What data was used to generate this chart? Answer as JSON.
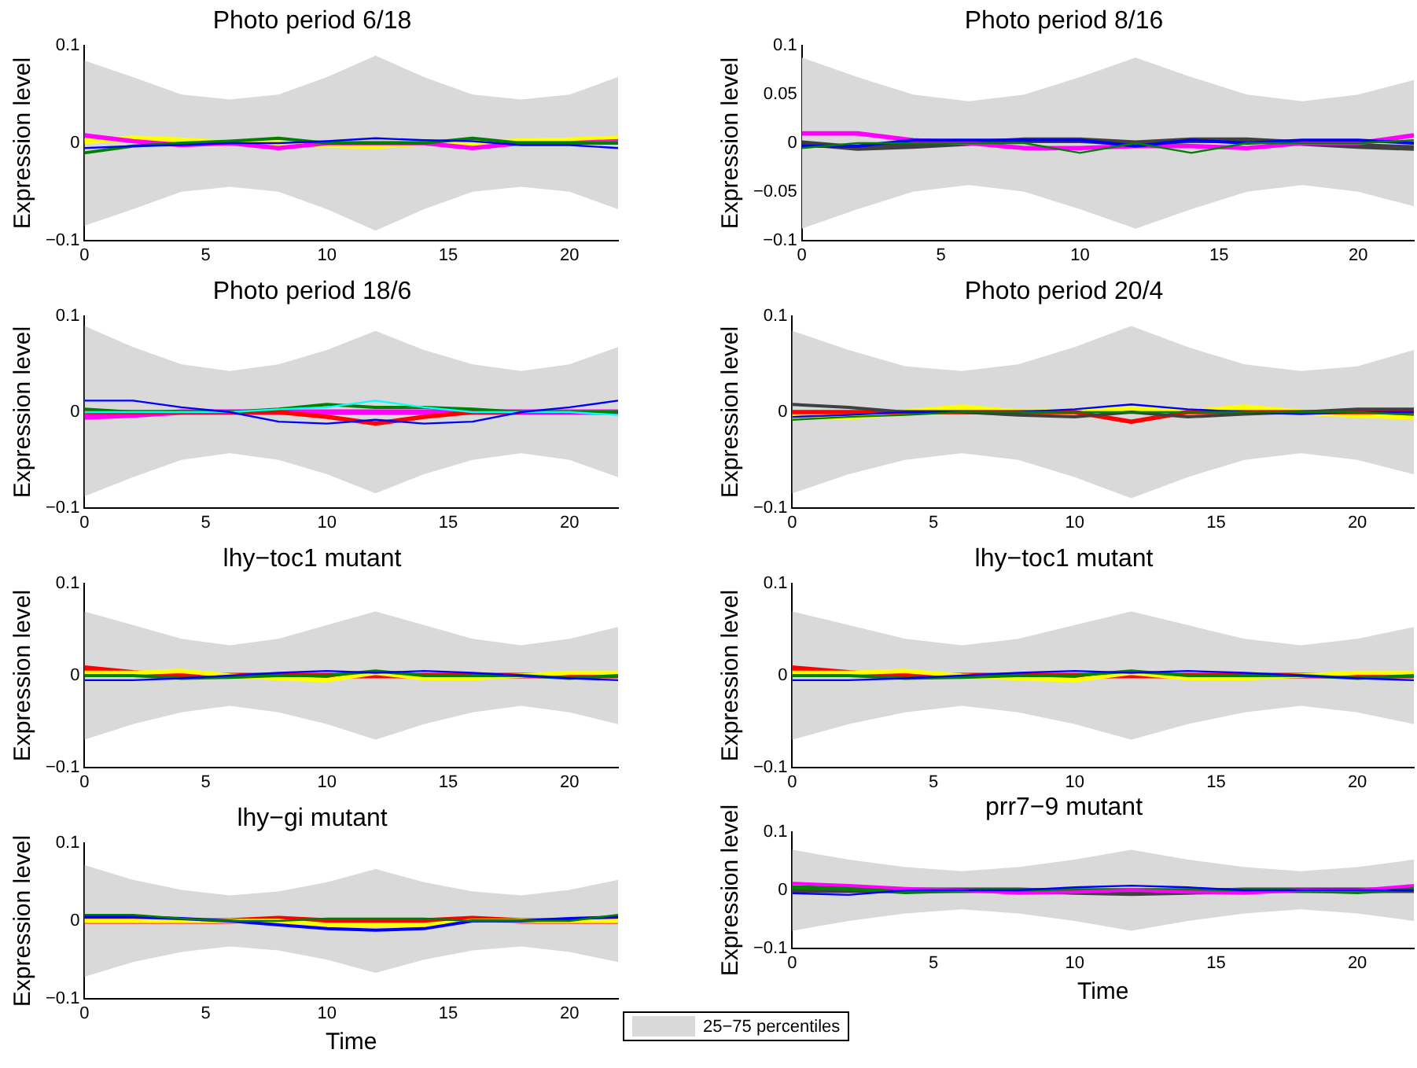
{
  "chart_data": [
    {
      "type": "line",
      "title": "Photo period 6/18",
      "ylabel": "Expression level",
      "x": [
        0,
        2,
        4,
        6,
        8,
        10,
        12,
        14,
        16,
        18,
        20,
        22
      ],
      "xlim": [
        0,
        22
      ],
      "xticks": [
        0,
        5,
        10,
        15,
        20
      ],
      "ylim": [
        -0.1,
        0.1
      ],
      "yticks": [
        -0.1,
        0,
        0.1
      ],
      "grid": false,
      "series": [
        {
          "type": "area",
          "color": "#d9d9d9",
          "values": [
            null,
            null,
            null,
            null,
            null,
            null,
            null,
            null,
            null,
            null,
            null,
            null
          ],
          "lower": [
            -0.085,
            -0.068,
            -0.05,
            -0.045,
            -0.05,
            -0.068,
            -0.09,
            -0.068,
            -0.05,
            -0.045,
            -0.05,
            -0.068
          ],
          "upper": [
            0.085,
            0.068,
            0.05,
            0.045,
            0.05,
            0.068,
            0.09,
            0.068,
            0.05,
            0.045,
            0.05,
            0.068
          ]
        },
        {
          "color": "#ffff00",
          "values": [
            0.002,
            0.005,
            0.003,
            0,
            0,
            -0.002,
            -0.003,
            0,
            0,
            0.002,
            0.003,
            0.005
          ]
        },
        {
          "color": "#ff00ff",
          "values": [
            0.008,
            0.002,
            -0.002,
            0,
            -0.005,
            0,
            0,
            0,
            -0.005,
            0,
            0,
            0.002
          ]
        },
        {
          "color": "#008000",
          "values": [
            -0.01,
            -0.003,
            0,
            0.002,
            0.005,
            0,
            0,
            0,
            0.005,
            0,
            0,
            0
          ]
        },
        {
          "color": "#0000ff",
          "values": [
            -0.005,
            -0.003,
            -0.002,
            0,
            0,
            0.002,
            0.005,
            0.003,
            0.002,
            -0.002,
            -0.002,
            -0.005
          ]
        }
      ]
    },
    {
      "type": "line",
      "title": "Photo period 8/16",
      "ylabel": "Expression level",
      "x": [
        0,
        2,
        4,
        6,
        8,
        10,
        12,
        14,
        16,
        18,
        20,
        22
      ],
      "xlim": [
        0,
        22
      ],
      "xticks": [
        0,
        5,
        10,
        15,
        20
      ],
      "ylim": [
        -0.1,
        0.1
      ],
      "yticks": [
        -0.1,
        -0.05,
        0,
        0.05,
        0.1
      ],
      "grid": false,
      "series": [
        {
          "type": "area",
          "color": "#d9d9d9",
          "values": [
            null,
            null,
            null,
            null,
            null,
            null,
            null,
            null,
            null,
            null,
            null,
            null
          ],
          "lower": [
            -0.088,
            -0.068,
            -0.05,
            -0.043,
            -0.05,
            -0.068,
            -0.088,
            -0.068,
            -0.05,
            -0.043,
            -0.05,
            -0.065
          ],
          "upper": [
            0.088,
            0.068,
            0.05,
            0.043,
            0.05,
            0.068,
            0.088,
            0.068,
            0.05,
            0.043,
            0.05,
            0.065
          ]
        },
        {
          "color": "#404040",
          "values": [
            0,
            -0.005,
            -0.003,
            0,
            0.003,
            0.003,
            0,
            0.003,
            0.003,
            0,
            -0.003,
            -0.005
          ]
        },
        {
          "color": "#ff00ff",
          "values": [
            0.01,
            0.01,
            0.003,
            0,
            -0.005,
            -0.005,
            -0.003,
            -0.003,
            -0.005,
            0,
            0,
            0.008
          ]
        },
        {
          "color": "#0000ff",
          "values": [
            -0.003,
            -0.003,
            0.003,
            0.003,
            0.003,
            0.003,
            -0.003,
            0.003,
            0,
            0.003,
            0.003,
            0
          ]
        },
        {
          "color": "#008000",
          "values": [
            -0.005,
            0,
            0,
            0,
            0,
            -0.01,
            0,
            -0.01,
            0,
            0,
            0,
            0.003
          ]
        }
      ]
    },
    {
      "type": "line",
      "title": "Photo period 18/6",
      "ylabel": "Expression level",
      "x": [
        0,
        2,
        4,
        6,
        8,
        10,
        12,
        14,
        16,
        18,
        20,
        22
      ],
      "xlim": [
        0,
        22
      ],
      "xticks": [
        0,
        5,
        10,
        15,
        20
      ],
      "ylim": [
        -0.1,
        0.1
      ],
      "yticks": [
        -0.1,
        0,
        0.1
      ],
      "grid": false,
      "series": [
        {
          "type": "area",
          "color": "#d9d9d9",
          "values": [
            null,
            null,
            null,
            null,
            null,
            null,
            null,
            null,
            null,
            null,
            null,
            null
          ],
          "lower": [
            -0.088,
            -0.068,
            -0.05,
            -0.043,
            -0.05,
            -0.065,
            -0.085,
            -0.065,
            -0.05,
            -0.043,
            -0.05,
            -0.068
          ],
          "upper": [
            0.09,
            0.068,
            0.05,
            0.043,
            0.05,
            0.065,
            0.085,
            0.065,
            0.05,
            0.043,
            0.05,
            0.068
          ]
        },
        {
          "color": "#ff00ff",
          "values": [
            -0.005,
            -0.003,
            0,
            0,
            0,
            0,
            0,
            0,
            0,
            0,
            0,
            0
          ]
        },
        {
          "color": "#ff0000",
          "values": [
            0,
            0,
            0,
            0,
            0,
            -0.005,
            -0.012,
            -0.005,
            0,
            0,
            null,
            null
          ]
        },
        {
          "color": "#008000",
          "values": [
            0.003,
            0,
            0,
            0,
            0.003,
            0.008,
            0.005,
            0.005,
            0.003,
            0,
            0,
            0
          ]
        },
        {
          "color": "#00ffff",
          "values": [
            0,
            0,
            0,
            0,
            0.003,
            0.005,
            0.012,
            0.005,
            0,
            0,
            0,
            -0.003
          ]
        },
        {
          "color": "#0000ff",
          "values": [
            0.012,
            0.012,
            0.005,
            0,
            -0.01,
            -0.012,
            -0.008,
            -0.012,
            -0.01,
            0,
            0.005,
            0.012
          ]
        }
      ]
    },
    {
      "type": "line",
      "title": "Photo period 20/4",
      "ylabel": "Expression level",
      "x": [
        0,
        2,
        4,
        6,
        8,
        10,
        12,
        14,
        16,
        18,
        20,
        22
      ],
      "xlim": [
        0,
        22
      ],
      "xticks": [
        0,
        5,
        10,
        15,
        20
      ],
      "ylim": [
        -0.1,
        0.1
      ],
      "yticks": [
        -0.1,
        0,
        0.1
      ],
      "grid": false,
      "series": [
        {
          "type": "area",
          "color": "#d9d9d9",
          "values": [
            null,
            null,
            null,
            null,
            null,
            null,
            null,
            null,
            null,
            null,
            null,
            null
          ],
          "lower": [
            -0.085,
            -0.065,
            -0.05,
            -0.043,
            -0.05,
            -0.068,
            -0.09,
            -0.068,
            -0.05,
            -0.043,
            -0.05,
            -0.065
          ],
          "upper": [
            0.085,
            0.065,
            0.048,
            0.043,
            0.05,
            0.068,
            0.09,
            0.068,
            0.05,
            0.043,
            0.048,
            0.065
          ]
        },
        {
          "color": "#ffff00",
          "values": [
            -0.005,
            -0.005,
            0,
            0.005,
            0,
            0,
            0.003,
            0,
            0.005,
            0,
            -0.003,
            -0.005
          ]
        },
        {
          "color": "#ff0000",
          "values": [
            0,
            0,
            0,
            0,
            0,
            0,
            -0.01,
            0,
            0,
            0,
            0,
            0
          ]
        },
        {
          "color": "#404040",
          "values": [
            0.008,
            0.005,
            0,
            0,
            -0.003,
            -0.005,
            0,
            -0.005,
            -0.002,
            0,
            0.003,
            0.003
          ]
        },
        {
          "color": "#0000ff",
          "values": [
            -0.005,
            -0.003,
            0,
            0,
            0,
            0.003,
            0.008,
            0.003,
            0,
            -0.002,
            0,
            0
          ]
        },
        {
          "color": "#008000",
          "values": [
            -0.008,
            -0.005,
            -0.003,
            0,
            0,
            0,
            0,
            0,
            0,
            0,
            0,
            -0.003
          ]
        }
      ]
    },
    {
      "type": "line",
      "title": "lhy−toc1 mutant",
      "ylabel": "Expression level",
      "x": [
        0,
        2,
        4,
        6,
        8,
        10,
        12,
        14,
        16,
        18,
        20,
        22
      ],
      "xlim": [
        0,
        22
      ],
      "xticks": [
        0,
        5,
        10,
        15,
        20
      ],
      "ylim": [
        -0.1,
        0.1
      ],
      "yticks": [
        -0.1,
        0,
        0.1
      ],
      "grid": false,
      "series": [
        {
          "type": "area",
          "color": "#d9d9d9",
          "values": [
            null,
            null,
            null,
            null,
            null,
            null,
            null,
            null,
            null,
            null,
            null,
            null
          ],
          "lower": [
            -0.07,
            -0.053,
            -0.04,
            -0.033,
            -0.04,
            -0.053,
            -0.07,
            -0.053,
            -0.04,
            -0.033,
            -0.04,
            -0.053
          ],
          "upper": [
            0.07,
            0.055,
            0.04,
            0.033,
            0.04,
            0.055,
            0.07,
            0.055,
            0.04,
            0.033,
            0.04,
            0.053
          ]
        },
        {
          "color": "#ff0000",
          "values": [
            0.008,
            0.003,
            0,
            0,
            0,
            0,
            0,
            0,
            0,
            0,
            0,
            0
          ]
        },
        {
          "color": "#ffff00",
          "values": [
            0.003,
            0.003,
            0.005,
            0,
            -0.003,
            -0.005,
            0.003,
            -0.003,
            -0.003,
            0,
            0.003,
            0.003
          ]
        },
        {
          "color": "#008000",
          "values": [
            0,
            0,
            -0.003,
            -0.002,
            0,
            0,
            0.005,
            0,
            0,
            0,
            -0.003,
            0
          ]
        },
        {
          "color": "#0000ff",
          "values": [
            -0.005,
            -0.005,
            -0.003,
            0,
            0.003,
            0.005,
            0.003,
            0.005,
            0.003,
            0,
            -0.003,
            -0.005
          ]
        }
      ]
    },
    {
      "type": "line",
      "title": "lhy−toc1 mutant",
      "ylabel": "Expression level",
      "x": [
        0,
        2,
        4,
        6,
        8,
        10,
        12,
        14,
        16,
        18,
        20,
        22
      ],
      "xlim": [
        0,
        22
      ],
      "xticks": [
        0,
        5,
        10,
        15,
        20
      ],
      "ylim": [
        -0.1,
        0.1
      ],
      "yticks": [
        -0.1,
        0,
        0.1
      ],
      "grid": false,
      "series": [
        {
          "type": "area",
          "color": "#d9d9d9",
          "values": [
            null,
            null,
            null,
            null,
            null,
            null,
            null,
            null,
            null,
            null,
            null,
            null
          ],
          "lower": [
            -0.07,
            -0.053,
            -0.04,
            -0.033,
            -0.04,
            -0.053,
            -0.07,
            -0.053,
            -0.04,
            -0.033,
            -0.04,
            -0.053
          ],
          "upper": [
            0.07,
            0.055,
            0.04,
            0.033,
            0.04,
            0.055,
            0.07,
            0.055,
            0.04,
            0.033,
            0.04,
            0.053
          ]
        },
        {
          "color": "#ff0000",
          "values": [
            0.008,
            0.003,
            0,
            0,
            0,
            0,
            0,
            0,
            0,
            0,
            0,
            0
          ]
        },
        {
          "color": "#ffff00",
          "values": [
            0.003,
            0.003,
            0.005,
            0,
            -0.003,
            -0.005,
            0.003,
            -0.003,
            -0.003,
            0,
            0.003,
            0.003
          ]
        },
        {
          "color": "#008000",
          "values": [
            0,
            0,
            -0.003,
            -0.002,
            0,
            0,
            0.005,
            0,
            0,
            0,
            -0.003,
            0
          ]
        },
        {
          "color": "#0000ff",
          "values": [
            -0.005,
            -0.005,
            -0.003,
            0,
            0.003,
            0.005,
            0.003,
            0.005,
            0.003,
            0,
            -0.003,
            -0.005
          ]
        }
      ]
    },
    {
      "type": "line",
      "title": "lhy−gi mutant",
      "ylabel": "Expression level",
      "xlabel": "Time",
      "x": [
        0,
        2,
        4,
        6,
        8,
        10,
        12,
        14,
        16,
        18,
        20,
        22
      ],
      "xlim": [
        0,
        22
      ],
      "xticks": [
        0,
        5,
        10,
        15,
        20
      ],
      "ylim": [
        -0.1,
        0.1
      ],
      "yticks": [
        -0.1,
        0,
        0.1
      ],
      "grid": false,
      "series": [
        {
          "type": "area",
          "color": "#d9d9d9",
          "values": [
            null,
            null,
            null,
            null,
            null,
            null,
            null,
            null,
            null,
            null,
            null,
            null
          ],
          "lower": [
            -0.072,
            -0.053,
            -0.04,
            -0.033,
            -0.038,
            -0.05,
            -0.067,
            -0.05,
            -0.038,
            -0.033,
            -0.04,
            -0.053
          ],
          "upper": [
            0.072,
            0.053,
            0.04,
            0.033,
            0.038,
            0.05,
            0.067,
            0.05,
            0.038,
            0.033,
            0.04,
            0.053
          ]
        },
        {
          "color": "#ff0000",
          "values": [
            0,
            0,
            0,
            0,
            0.003,
            0,
            0,
            0,
            0.003,
            0,
            0,
            0
          ]
        },
        {
          "color": "#ffff00",
          "values": [
            0,
            0,
            0,
            0,
            0,
            -0.005,
            -0.005,
            -0.005,
            0,
            0,
            0,
            0
          ]
        },
        {
          "color": "#0000ff",
          "values": [
            0.005,
            0.005,
            0.003,
            0,
            -0.005,
            -0.01,
            -0.012,
            -0.01,
            0,
            0,
            0.003,
            0.005
          ]
        },
        {
          "color": "#008000",
          "values": [
            0.008,
            0.008,
            0.003,
            0,
            0,
            0.003,
            0.003,
            0.003,
            0,
            0,
            0,
            0.008
          ]
        }
      ]
    },
    {
      "type": "line",
      "title": "prr7−9 mutant",
      "ylabel": "Expression level",
      "xlabel": "Time",
      "x": [
        0,
        2,
        4,
        6,
        8,
        10,
        12,
        14,
        16,
        18,
        20,
        22
      ],
      "xlim": [
        0,
        22
      ],
      "xticks": [
        0,
        5,
        10,
        15,
        20
      ],
      "ylim": [
        -0.1,
        0.1
      ],
      "yticks": [
        -0.1,
        0,
        0.1
      ],
      "grid": false,
      "legend": "bottom",
      "series": [
        {
          "type": "area",
          "name": "25−75 percentiles",
          "color": "#d9d9d9",
          "values": [
            null,
            null,
            null,
            null,
            null,
            null,
            null,
            null,
            null,
            null,
            null,
            null
          ],
          "lower": [
            -0.07,
            -0.053,
            -0.04,
            -0.033,
            -0.04,
            -0.053,
            -0.07,
            -0.053,
            -0.04,
            -0.033,
            -0.04,
            -0.053
          ],
          "upper": [
            0.07,
            0.053,
            0.04,
            0.033,
            0.04,
            0.053,
            0.07,
            0.053,
            0.04,
            0.033,
            0.04,
            0.053
          ]
        },
        {
          "color": "#404040",
          "values": [
            0,
            0,
            0,
            0,
            0,
            -0.003,
            -0.005,
            -0.003,
            0,
            0,
            0,
            0
          ]
        },
        {
          "color": "#008000",
          "values": [
            0.005,
            0.003,
            -0.003,
            0,
            0,
            0,
            0,
            0,
            0,
            0,
            -0.003,
            0.003
          ]
        },
        {
          "color": "#ff00ff",
          "values": [
            0.012,
            0.008,
            0.003,
            0,
            -0.005,
            -0.003,
            0,
            -0.003,
            -0.005,
            0,
            0,
            0.008
          ]
        },
        {
          "color": "#0000ff",
          "values": [
            -0.005,
            -0.008,
            0,
            0,
            0,
            0.005,
            0.008,
            0.005,
            0,
            0,
            0,
            0
          ]
        }
      ]
    }
  ]
}
